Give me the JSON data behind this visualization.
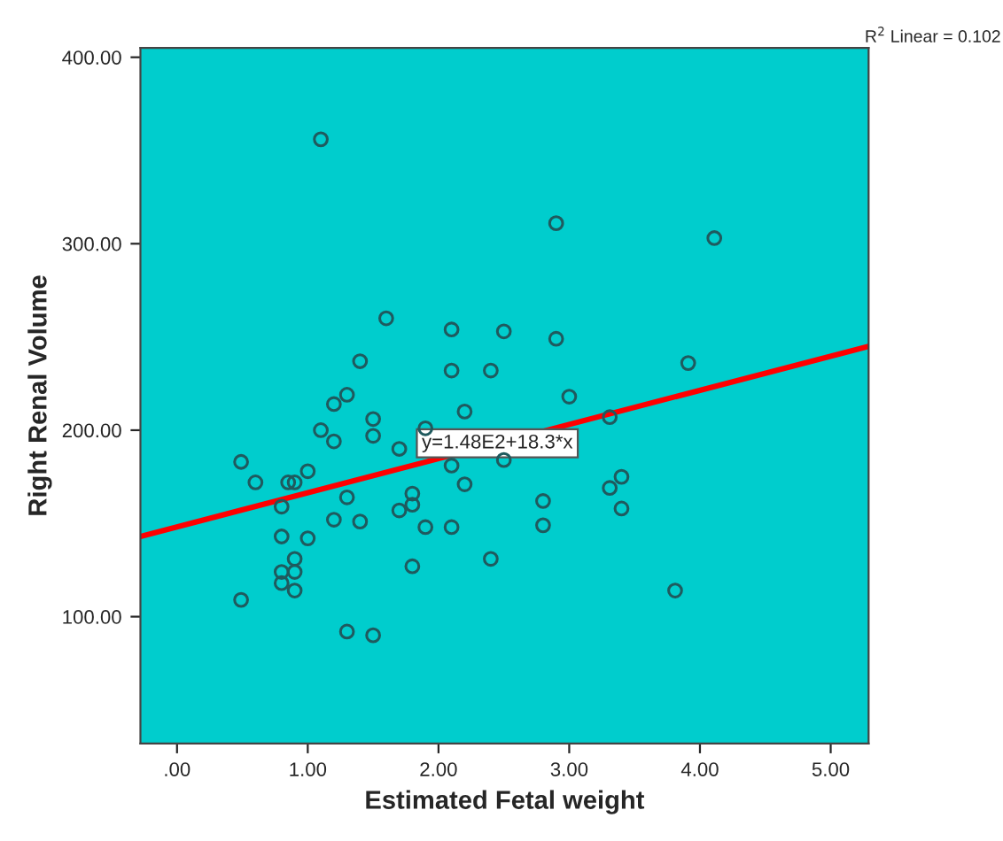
{
  "chart_data": {
    "type": "scatter",
    "xlabel": "Estimated Fetal weight",
    "ylabel": "Right Renal Volume",
    "xlim": [
      -0.28,
      5.29
    ],
    "ylim": [
      32,
      405
    ],
    "xticks": [
      {
        "value": 0,
        "label": ".00"
      },
      {
        "value": 1,
        "label": "1.00"
      },
      {
        "value": 2,
        "label": "2.00"
      },
      {
        "value": 3,
        "label": "3.00"
      },
      {
        "value": 4,
        "label": "4.00"
      },
      {
        "value": 5,
        "label": "5.00"
      }
    ],
    "yticks": [
      {
        "value": 100,
        "label": "100.00"
      },
      {
        "value": 200,
        "label": "200.00"
      },
      {
        "value": 300,
        "label": "300.00"
      },
      {
        "value": 400,
        "label": "400.00"
      }
    ],
    "grid": false,
    "marker": "circle",
    "series": [
      {
        "color": "#1f5a5e",
        "x": [
          1.1,
          1.6,
          2.1,
          1.4,
          2.1,
          2.4,
          1.3,
          1.2,
          2.9,
          4.11,
          2.5,
          2.9,
          3.91,
          3.0,
          1.5,
          2.2,
          1.1,
          1.5,
          1.2,
          1.9,
          1.7,
          0.49,
          2.1,
          1.0,
          0.6,
          0.85,
          0.9,
          2.2,
          1.3,
          1.8,
          1.8,
          0.8,
          1.7,
          1.2,
          1.4,
          1.9,
          2.1,
          0.8,
          1.0,
          0.9,
          2.4,
          0.8,
          0.9,
          1.8,
          0.8,
          0.9,
          0.49,
          1.3,
          1.5,
          3.31,
          2.5,
          3.4,
          3.31,
          2.8,
          3.4,
          2.8,
          3.81
        ],
        "values": [
          356,
          260,
          254,
          237,
          232,
          232,
          219,
          214,
          311,
          303,
          253,
          249,
          236,
          218,
          206,
          210,
          200,
          197,
          194,
          201,
          190,
          183,
          181,
          178,
          172,
          172,
          172,
          171,
          164,
          166,
          160,
          159,
          157,
          152,
          151,
          148,
          148,
          143,
          142,
          131,
          131,
          124,
          124,
          127,
          118,
          114,
          109,
          92,
          90,
          207,
          184,
          175,
          169,
          162,
          158,
          149,
          114
        ]
      },
      {
        "type": "line",
        "color": "#ff0000",
        "line_style": "solid",
        "marker": "none",
        "x": [
          -0.28,
          5.29
        ],
        "values": [
          143,
          245
        ]
      }
    ],
    "annotations": [
      {
        "text": "y=1.48E2+18.3*x",
        "x": 2.45,
        "y": 193
      },
      "R$^{2}$ Linear = 0.102"
    ]
  }
}
